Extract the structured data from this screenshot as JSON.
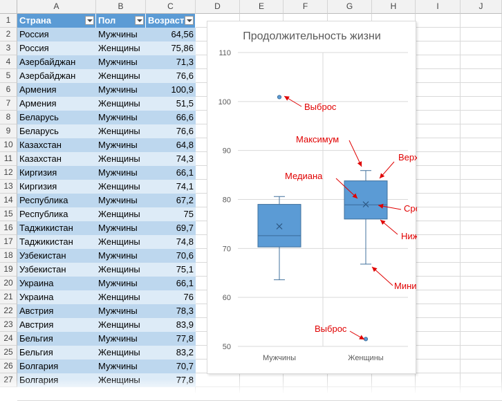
{
  "columns": [
    "A",
    "B",
    "C",
    "D",
    "E",
    "F",
    "G",
    "H",
    "I",
    "J"
  ],
  "rows": [
    "1",
    "2",
    "3",
    "4",
    "5",
    "6",
    "7",
    "8",
    "9",
    "10",
    "11",
    "12",
    "13",
    "14",
    "15",
    "16",
    "17",
    "18",
    "19",
    "20",
    "21",
    "22",
    "23",
    "24",
    "25",
    "26",
    "27"
  ],
  "table": {
    "headers": [
      "Страна",
      "Пол",
      "Возраст"
    ],
    "data": [
      [
        "Россия",
        "Мужчины",
        "64,56"
      ],
      [
        "Россия",
        "Женщины",
        "75,86"
      ],
      [
        "Азербайджан",
        "Мужчины",
        "71,3"
      ],
      [
        "Азербайджан",
        "Женщины",
        "76,6"
      ],
      [
        "Армения",
        "Мужчины",
        "100,9"
      ],
      [
        "Армения",
        "Женщины",
        "51,5"
      ],
      [
        "Беларусь",
        "Мужчины",
        "66,6"
      ],
      [
        "Беларусь",
        "Женщины",
        "76,6"
      ],
      [
        "Казахстан",
        "Мужчины",
        "64,8"
      ],
      [
        "Казахстан",
        "Женщины",
        "74,3"
      ],
      [
        "Киргизия",
        "Мужчины",
        "66,1"
      ],
      [
        "Киргизия",
        "Женщины",
        "74,1"
      ],
      [
        "Республика",
        "Мужчины",
        "67,2"
      ],
      [
        "Республика",
        "Женщины",
        "75"
      ],
      [
        "Таджикистан",
        "Мужчины",
        "69,7"
      ],
      [
        "Таджикистан",
        "Женщины",
        "74,8"
      ],
      [
        "Узбекистан",
        "Мужчины",
        "70,6"
      ],
      [
        "Узбекистан",
        "Женщины",
        "75,1"
      ],
      [
        "Украина",
        "Мужчины",
        "66,1"
      ],
      [
        "Украина",
        "Женщины",
        "76"
      ],
      [
        "Австрия",
        "Мужчины",
        "78,3"
      ],
      [
        "Австрия",
        "Женщины",
        "83,9"
      ],
      [
        "Бельгия",
        "Мужчины",
        "77,8"
      ],
      [
        "Бельгия",
        "Женщины",
        "83,2"
      ],
      [
        "Болгария",
        "Мужчины",
        "70,7"
      ],
      [
        "Болгария",
        "Женщины",
        "77,8"
      ]
    ]
  },
  "colors": {
    "header_blue": "#5b9bd5",
    "band_light": "#ddebf7",
    "band_dark": "#bdd7ee",
    "box_fill": "#5b9bd5",
    "annotation_red": "#e00000"
  },
  "chart_data": {
    "type": "box",
    "title": "Продолжительность жизни",
    "categories": [
      "Мужчины",
      "Женщины"
    ],
    "yticks": [
      "50",
      "60",
      "70",
      "80",
      "90",
      "100",
      "110"
    ],
    "ylim": [
      50,
      110
    ],
    "grid": true,
    "boxes": [
      {
        "name": "Мужчины",
        "min": 63.6,
        "q1": 70.3,
        "median": 72.6,
        "mean": 74.5,
        "q3": 79,
        "max": 80.6,
        "outliers": [
          100.9
        ]
      },
      {
        "name": "Женщины",
        "min": 66.8,
        "q1": 76,
        "median": 78.9,
        "mean": 79,
        "q3": 83.8,
        "max": 85.9,
        "outliers": [
          51.5
        ]
      }
    ],
    "annotations": [
      "Выброс",
      "Максимум",
      "Верхний квантиль",
      "Медиана",
      "Среднее",
      "Нижний квантиль",
      "Минимум",
      "Выброс"
    ]
  }
}
